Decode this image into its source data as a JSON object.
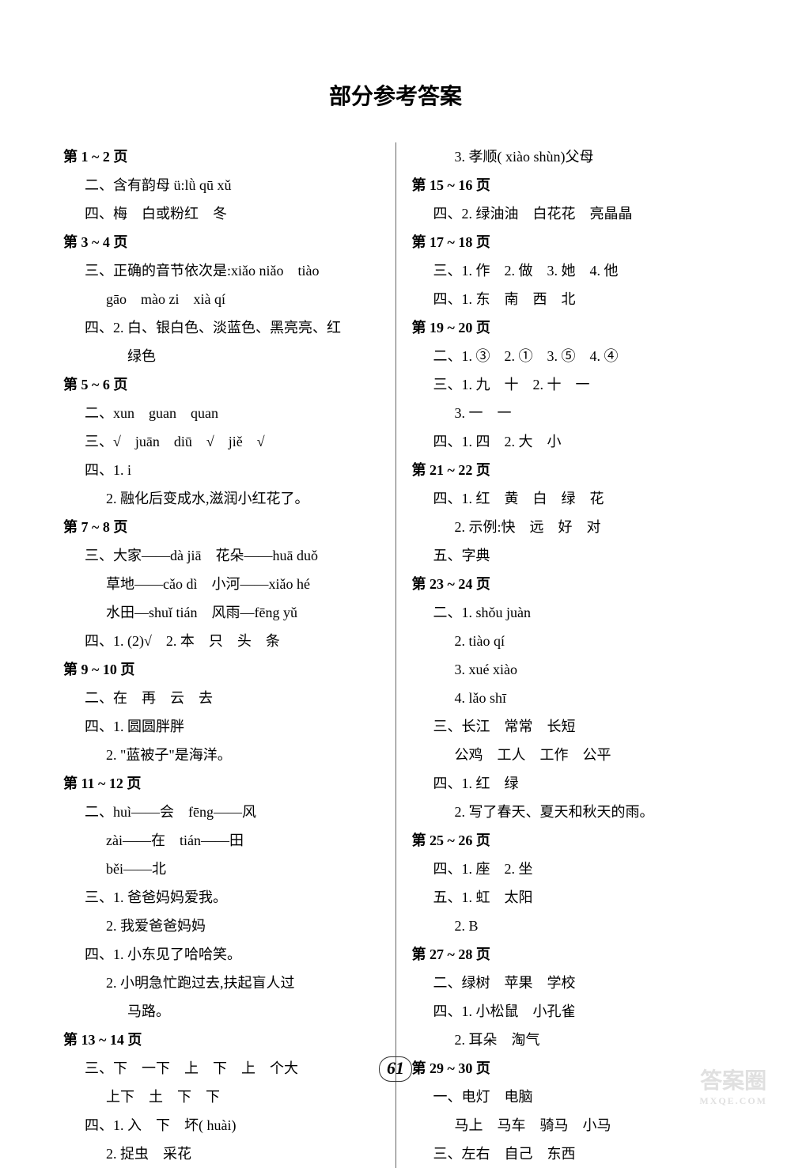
{
  "title": "部分参考答案",
  "page_number": "61",
  "watermark_main": "答案圈",
  "watermark_sub": "MXQE.COM",
  "colors": {
    "background": "#ffffff",
    "text": "#000000",
    "divider": "#666666",
    "watermark": "#e0e0e0"
  },
  "left_column": [
    {
      "type": "header",
      "text": "第 1 ~ 2 页"
    },
    {
      "type": "line",
      "text": "二、含有韵母 ü:lǜ qū xǔ"
    },
    {
      "type": "line",
      "text": "四、梅　白或粉红　冬"
    },
    {
      "type": "header",
      "text": "第 3 ~ 4 页"
    },
    {
      "type": "line",
      "text": "三、正确的音节依次是:xiǎo niǎo　tiào"
    },
    {
      "type": "indent1",
      "text": "gāo　mào zi　xià qí"
    },
    {
      "type": "line",
      "text": "四、2. 白、银白色、淡蓝色、黑亮亮、红"
    },
    {
      "type": "indent2",
      "text": "绿色"
    },
    {
      "type": "header",
      "text": "第 5 ~ 6 页"
    },
    {
      "type": "line",
      "text": "二、xun　guan　quan"
    },
    {
      "type": "line",
      "text": "三、√　juān　diū　√　jiě　√"
    },
    {
      "type": "line",
      "text": "四、1. i"
    },
    {
      "type": "indent1",
      "text": "2. 融化后变成水,滋润小红花了。"
    },
    {
      "type": "header",
      "text": "第 7 ~ 8 页"
    },
    {
      "type": "line",
      "text": "三、大家——dà jiā　花朵——huā duǒ"
    },
    {
      "type": "indent1",
      "text": "草地——cǎo dì　小河——xiǎo hé"
    },
    {
      "type": "indent1",
      "text": "水田—shuǐ tián　风雨—fēng yǔ"
    },
    {
      "type": "line",
      "text": "四、1. (2)√　2. 本　只　头　条"
    },
    {
      "type": "header",
      "text": "第 9 ~ 10 页"
    },
    {
      "type": "line",
      "text": "二、在　再　云　去"
    },
    {
      "type": "line",
      "text": "四、1. 圆圆胖胖"
    },
    {
      "type": "indent1",
      "text": "2. \"蓝被子\"是海洋。"
    },
    {
      "type": "header",
      "text": "第 11 ~ 12 页"
    },
    {
      "type": "line",
      "text": "二、huì——会　fēng——风"
    },
    {
      "type": "indent1",
      "text": "zài——在　tián——田"
    },
    {
      "type": "indent1",
      "text": "běi——北"
    },
    {
      "type": "line",
      "text": "三、1. 爸爸妈妈爱我。"
    },
    {
      "type": "indent1",
      "text": "2. 我爱爸爸妈妈"
    },
    {
      "type": "line",
      "text": "四、1. 小东见了哈哈笑。"
    },
    {
      "type": "indent1",
      "text": "2. 小明急忙跑过去,扶起盲人过"
    },
    {
      "type": "indent2",
      "text": "马路。"
    },
    {
      "type": "header",
      "text": "第 13 ~ 14 页"
    },
    {
      "type": "line",
      "text": "三、下　一下　上　下　上　个大"
    },
    {
      "type": "indent1",
      "text": "上下　土　下　下"
    },
    {
      "type": "line",
      "text": "四、1. 入　下　坏( huài)"
    },
    {
      "type": "indent1",
      "text": "2. 捉虫　采花"
    }
  ],
  "right_column": [
    {
      "type": "indent1",
      "text": "3. 孝顺( xiào shùn)父母"
    },
    {
      "type": "header",
      "text": "第 15 ~ 16 页"
    },
    {
      "type": "line",
      "text": "四、2. 绿油油　白花花　亮晶晶"
    },
    {
      "type": "header",
      "text": "第 17 ~ 18 页"
    },
    {
      "type": "line",
      "text": "三、1. 作　2. 做　3. 她　4. 他"
    },
    {
      "type": "line",
      "text": "四、1. 东　南　西　北"
    },
    {
      "type": "header",
      "text": "第 19 ~ 20 页"
    },
    {
      "type": "line",
      "text": "二、1. ③　2. ①　3. ⑤　4. ④"
    },
    {
      "type": "line",
      "text": "三、1. 九　十　2. 十　一"
    },
    {
      "type": "indent1",
      "text": "3. 一　一"
    },
    {
      "type": "line",
      "text": "四、1. 四　2. 大　小"
    },
    {
      "type": "header",
      "text": "第 21 ~ 22 页"
    },
    {
      "type": "line",
      "text": "四、1. 红　黄　白　绿　花"
    },
    {
      "type": "indent1",
      "text": "2. 示例:快　远　好　对"
    },
    {
      "type": "line",
      "text": "五、字典"
    },
    {
      "type": "header",
      "text": "第 23 ~ 24 页"
    },
    {
      "type": "line",
      "text": "二、1. shǒu juàn"
    },
    {
      "type": "indent1",
      "text": "2. tiào qí"
    },
    {
      "type": "indent1",
      "text": "3. xué xiào"
    },
    {
      "type": "indent1",
      "text": "4. lǎo shī"
    },
    {
      "type": "line",
      "text": "三、长江　常常　长短"
    },
    {
      "type": "indent1",
      "text": "公鸡　工人　工作　公平"
    },
    {
      "type": "line",
      "text": "四、1. 红　绿"
    },
    {
      "type": "indent1",
      "text": "2. 写了春天、夏天和秋天的雨。"
    },
    {
      "type": "header",
      "text": "第 25 ~ 26 页"
    },
    {
      "type": "line",
      "text": "四、1. 座　2. 坐"
    },
    {
      "type": "line",
      "text": "五、1. 虹　太阳"
    },
    {
      "type": "indent1",
      "text": "2. B"
    },
    {
      "type": "header",
      "text": "第 27 ~ 28 页"
    },
    {
      "type": "line",
      "text": "二、绿树　苹果　学校"
    },
    {
      "type": "line",
      "text": "四、1. 小松鼠　小孔雀"
    },
    {
      "type": "indent1",
      "text": "2. 耳朵　淘气"
    },
    {
      "type": "header",
      "text": "第 29 ~ 30 页"
    },
    {
      "type": "line",
      "text": "一、电灯　电脑"
    },
    {
      "type": "indent1",
      "text": "马上　马车　骑马　小马"
    },
    {
      "type": "line",
      "text": "三、左右　自己　东西"
    }
  ]
}
